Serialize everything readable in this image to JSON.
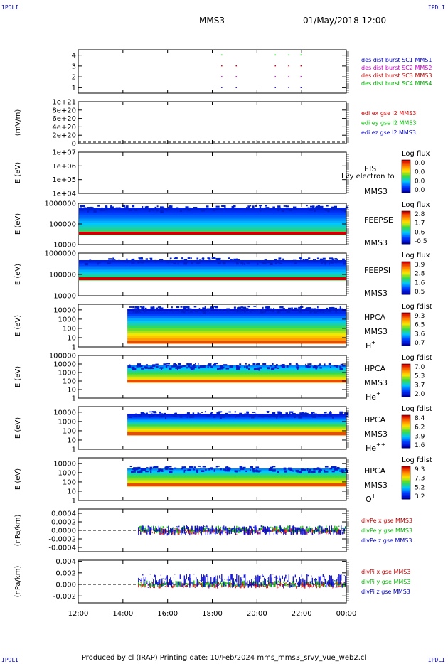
{
  "header": {
    "spacecraft": "MMS3",
    "datetime": "01/May/2018 12:00",
    "corner_label": "IPDLI"
  },
  "footer": {
    "text": "Produced by cl (IRAP)   Printing date: 10/Feb/2024   mms_mms3_srvy_vue_web2.cl"
  },
  "time_axis": {
    "range_hours": [
      12,
      24
    ],
    "ticks": [
      "12:00",
      "14:00",
      "16:00",
      "18:00",
      "20:00",
      "22:00",
      "00:00"
    ]
  },
  "chart_data": [
    {
      "id": "burst",
      "type": "scatter",
      "ylim": [
        0.5,
        4.5
      ],
      "yticks": [
        "4",
        "3",
        "2",
        "1"
      ],
      "ytick_values": [
        4,
        3,
        2,
        1
      ],
      "series": [
        {
          "name": "des dist burst SC1 MMS1",
          "color": "#0000cc",
          "y": 1,
          "x": [
            18.4,
            19.05,
            20.8,
            21.4,
            21.95
          ]
        },
        {
          "name": "des dist burst SC2 MMS2",
          "color": "#cc00cc",
          "y": 2,
          "x": [
            18.4,
            19.05,
            20.8,
            21.4,
            21.95
          ]
        },
        {
          "name": "des dist burst SC3 MMS3",
          "color": "#cc0000",
          "y": 3,
          "x": [
            18.4,
            19.05,
            20.8,
            21.4,
            21.95
          ]
        },
        {
          "name": "des dist burst SC4 MMS4",
          "color": "#00aa00",
          "y": 4,
          "x": [
            18.4,
            20.8,
            21.4,
            21.95
          ]
        }
      ]
    },
    {
      "id": "edi",
      "type": "line",
      "ylabel": "(mV/m)",
      "yticks": [
        "1e+21",
        "8e+20",
        "6e+20",
        "4e+20",
        "2e+20",
        "0"
      ],
      "ytick_values": [
        1e+21,
        8e+20,
        6e+20,
        4e+20,
        2e+20,
        0
      ],
      "ylim": [
        0,
        1e+21
      ],
      "series": [
        {
          "name": "edi ex gse l2 MMS3",
          "color": "#cc0000"
        },
        {
          "name": "edi ey gse l2 MMS3",
          "color": "#00bb00"
        },
        {
          "name": "edi ez gse l2 MMS3",
          "color": "#0000cc"
        }
      ]
    },
    {
      "id": "eis",
      "type": "heatmap",
      "ylabel": "E (eV)",
      "yticks": [
        "1e+07",
        "1e+06",
        "1e+05",
        "1e+04"
      ],
      "log_y": true,
      "ylim": [
        10000,
        10000000
      ],
      "instrument": [
        "EIS",
        "MMS3"
      ],
      "overlay_text": "Lvy electron to",
      "colorbar": {
        "title": "Log flux",
        "ticks": [
          "0.0",
          "0.0",
          "0.0",
          "0.0"
        ]
      }
    },
    {
      "id": "feepse",
      "type": "heatmap",
      "ylabel": "E (eV)",
      "yticks": [
        "1000000",
        "100000",
        "10000"
      ],
      "log_y": true,
      "ylim": [
        10000,
        1000000
      ],
      "instrument": [
        "FEEPSE",
        "MMS3"
      ],
      "colorbar": {
        "title": "Log flux",
        "ticks": [
          "2.8",
          "1.7",
          "0.6",
          "-0.5"
        ]
      }
    },
    {
      "id": "feepsi",
      "type": "heatmap",
      "ylabel": "E (eV)",
      "yticks": [
        "1000000",
        "100000",
        "10000"
      ],
      "log_y": true,
      "ylim": [
        10000,
        1000000
      ],
      "instrument": [
        "FEEPSI",
        "MMS3"
      ],
      "colorbar": {
        "title": "Log flux",
        "ticks": [
          "3.9",
          "2.8",
          "1.6",
          "0.5"
        ]
      }
    },
    {
      "id": "hpca_h",
      "type": "heatmap",
      "ylabel": "E (eV)",
      "yticks": [
        "10000",
        "1000",
        "100",
        "10",
        "1"
      ],
      "log_y": true,
      "ylim": [
        1,
        40000
      ],
      "data_start_hour": 14.2,
      "instrument": [
        "HPCA",
        "MMS3",
        "H",
        "+"
      ],
      "colorbar": {
        "title": "Log fdist",
        "ticks": [
          "9.3",
          "6.5",
          "3.6",
          "0.7"
        ]
      }
    },
    {
      "id": "hpca_he",
      "type": "heatmap",
      "ylabel": "E (eV)",
      "yticks": [
        "100000",
        "10000",
        "1000",
        "100",
        "10",
        "1"
      ],
      "log_y": true,
      "ylim": [
        1,
        100000
      ],
      "data_start_hour": 14.2,
      "instrument": [
        "HPCA",
        "MMS3",
        "He",
        "+"
      ],
      "colorbar": {
        "title": "Log fdist",
        "ticks": [
          "7.0",
          "5.3",
          "3.7",
          "2.0"
        ]
      }
    },
    {
      "id": "hpca_hepp",
      "type": "heatmap",
      "ylabel": "E (eV)",
      "yticks": [
        "10000",
        "1000",
        "100",
        "10",
        "1"
      ],
      "log_y": true,
      "ylim": [
        1,
        40000
      ],
      "data_start_hour": 14.2,
      "instrument": [
        "HPCA",
        "MMS3",
        "He",
        "++"
      ],
      "colorbar": {
        "title": "Log fdist",
        "ticks": [
          "8.4",
          "6.2",
          "3.9",
          "1.6"
        ]
      }
    },
    {
      "id": "hpca_o",
      "type": "heatmap",
      "ylabel": "E (eV)",
      "yticks": [
        "10000",
        "1000",
        "100",
        "10",
        "1"
      ],
      "log_y": true,
      "ylim": [
        1,
        40000
      ],
      "data_start_hour": 14.2,
      "instrument": [
        "HPCA",
        "MMS3",
        "O",
        "+"
      ],
      "colorbar": {
        "title": "Log fdist",
        "ticks": [
          "9.3",
          "7.3",
          "5.2",
          "3.2"
        ]
      }
    },
    {
      "id": "divpe",
      "type": "line",
      "ylabel": "(nPa/km)",
      "yticks": [
        "0.0004",
        "0.0002",
        "0.0000",
        "-0.0002",
        "-0.0004"
      ],
      "ytick_values": [
        0.0004,
        0.0002,
        0,
        -0.0002,
        -0.0004
      ],
      "ylim": [
        -0.0005,
        0.0005
      ],
      "data_start_hour": 14.7,
      "series": [
        {
          "name": "divPe x gse MMS3",
          "color": "#cc0000"
        },
        {
          "name": "divPe y gse MMS3",
          "color": "#00bb00"
        },
        {
          "name": "divPe z gse MMS3",
          "color": "#0000cc"
        }
      ]
    },
    {
      "id": "divpi",
      "type": "line",
      "ylabel": "(nPa/km)",
      "yticks": [
        "0.004",
        "0.002",
        "0.000",
        "-0.002"
      ],
      "ytick_values": [
        0.004,
        0.002,
        0,
        -0.002
      ],
      "ylim": [
        -0.0032,
        0.0042
      ],
      "data_start_hour": 14.7,
      "series": [
        {
          "name": "divPi x gse MMS3",
          "color": "#cc0000"
        },
        {
          "name": "divPi y gse MMS3",
          "color": "#00bb00"
        },
        {
          "name": "divPi z gse MMS3",
          "color": "#0000cc"
        }
      ]
    }
  ]
}
